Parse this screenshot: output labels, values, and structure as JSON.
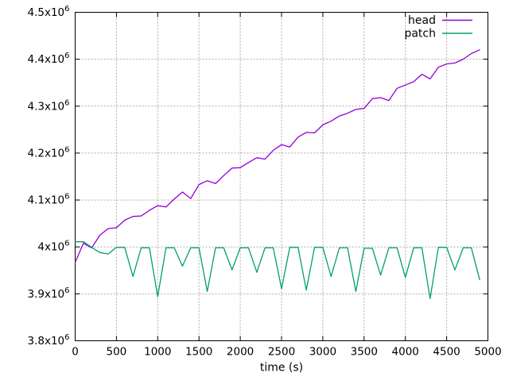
{
  "figure": {
    "background": "#ffffff",
    "border_color": "#000000",
    "grid_color": "#ababab",
    "text_color": "#000000"
  },
  "chart_data": {
    "type": "line",
    "title": "",
    "xlabel": "time (s)",
    "ylabel": "",
    "xlim": [
      0,
      5000
    ],
    "ylim": [
      3800000,
      4500000
    ],
    "grid": true,
    "legend_position": "top-right-inside",
    "x_ticks": [
      0,
      500,
      1000,
      1500,
      2000,
      2500,
      3000,
      3500,
      4000,
      4500,
      5000
    ],
    "x_tick_labels": [
      "0",
      "500",
      "1000",
      "1500",
      "2000",
      "2500",
      "3000",
      "3500",
      "4000",
      "4500",
      "5000"
    ],
    "y_ticks": [
      3800000,
      3900000,
      4000000,
      4100000,
      4200000,
      4300000,
      4400000,
      4500000
    ],
    "y_tick_labels": [
      "3.8x10^6",
      "3.9x10^6",
      "4x10^6",
      "4.1x10^6",
      "4.2x10^6",
      "4.3x10^6",
      "4.4x10^6",
      "4.5x10^6"
    ],
    "series": [
      {
        "name": "head",
        "color": "#9400D3",
        "x": [
          0,
          100,
          200,
          300,
          400,
          500,
          600,
          700,
          800,
          900,
          1000,
          1100,
          1200,
          1300,
          1400,
          1500,
          1600,
          1700,
          1800,
          1900,
          2000,
          2100,
          2200,
          2300,
          2400,
          2500,
          2600,
          2700,
          2800,
          2900,
          3000,
          3100,
          3200,
          3300,
          3400,
          3500,
          3600,
          3700,
          3800,
          3900,
          4000,
          4100,
          4200,
          4300,
          4400,
          4500,
          4600,
          4700,
          4800,
          4900
        ],
        "values": [
          3967000,
          4008000,
          3998000,
          4025000,
          4039000,
          4041000,
          4057000,
          4065000,
          4066000,
          4078000,
          4088000,
          4085000,
          4102000,
          4117000,
          4103000,
          4133000,
          4141000,
          4135000,
          4152000,
          4168000,
          4169000,
          4180000,
          4190000,
          4187000,
          4206000,
          4218000,
          4213000,
          4234000,
          4244000,
          4243000,
          4260000,
          4268000,
          4279000,
          4285000,
          4293000,
          4295000,
          4316000,
          4318000,
          4312000,
          4338000,
          4345000,
          4352000,
          4368000,
          4358000,
          4383000,
          4390000,
          4392000,
          4400000,
          4412000,
          4420000
        ]
      },
      {
        "name": "patch",
        "color": "#009E73",
        "x": [
          0,
          100,
          200,
          300,
          400,
          500,
          600,
          700,
          800,
          900,
          1000,
          1100,
          1200,
          1300,
          1400,
          1500,
          1600,
          1700,
          1800,
          1900,
          2000,
          2100,
          2200,
          2300,
          2400,
          2500,
          2600,
          2700,
          2800,
          2900,
          3000,
          3100,
          3200,
          3300,
          3400,
          3500,
          3600,
          3700,
          3800,
          3900,
          4000,
          4100,
          4200,
          4300,
          4400,
          4500,
          4600,
          4700,
          4800,
          4900
        ],
        "values": [
          4011000,
          4011000,
          3999000,
          3988000,
          3985000,
          3999000,
          3999000,
          3937000,
          3998000,
          3998000,
          3894000,
          3998000,
          3998000,
          3959000,
          3998000,
          3998000,
          3905000,
          3998000,
          3998000,
          3951000,
          3998000,
          3998000,
          3946000,
          3998000,
          3998000,
          3911000,
          3999000,
          3999000,
          3908000,
          3999000,
          3999000,
          3937000,
          3998000,
          3998000,
          3905000,
          3997000,
          3997000,
          3940000,
          3998000,
          3998000,
          3935000,
          3998000,
          3998000,
          3890000,
          3999000,
          3999000,
          3951000,
          3998000,
          3998000,
          3930000
        ]
      }
    ]
  },
  "legend": {
    "entries": [
      {
        "label": "head",
        "color": "#9400D3"
      },
      {
        "label": "patch",
        "color": "#009E73"
      }
    ]
  }
}
